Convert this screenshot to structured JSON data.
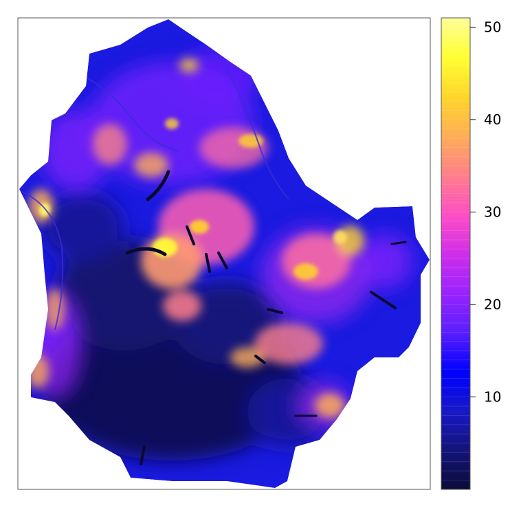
{
  "map": {
    "colorbar": {
      "min": 0,
      "max": 51,
      "ticks": [
        {
          "value": 10,
          "label": "10"
        },
        {
          "value": 20,
          "label": "20"
        },
        {
          "value": 30,
          "label": "30"
        },
        {
          "value": 40,
          "label": "40"
        },
        {
          "value": 50,
          "label": "50"
        }
      ],
      "colors": [
        "#0b0b3a",
        "#14147a",
        "#1818c8",
        "#0000ff",
        "#5a1fff",
        "#9a23ff",
        "#d02ee8",
        "#ff4fc4",
        "#ff7f8a",
        "#ffae55",
        "#ffd62a",
        "#ffff33",
        "#ffff99"
      ]
    }
  }
}
